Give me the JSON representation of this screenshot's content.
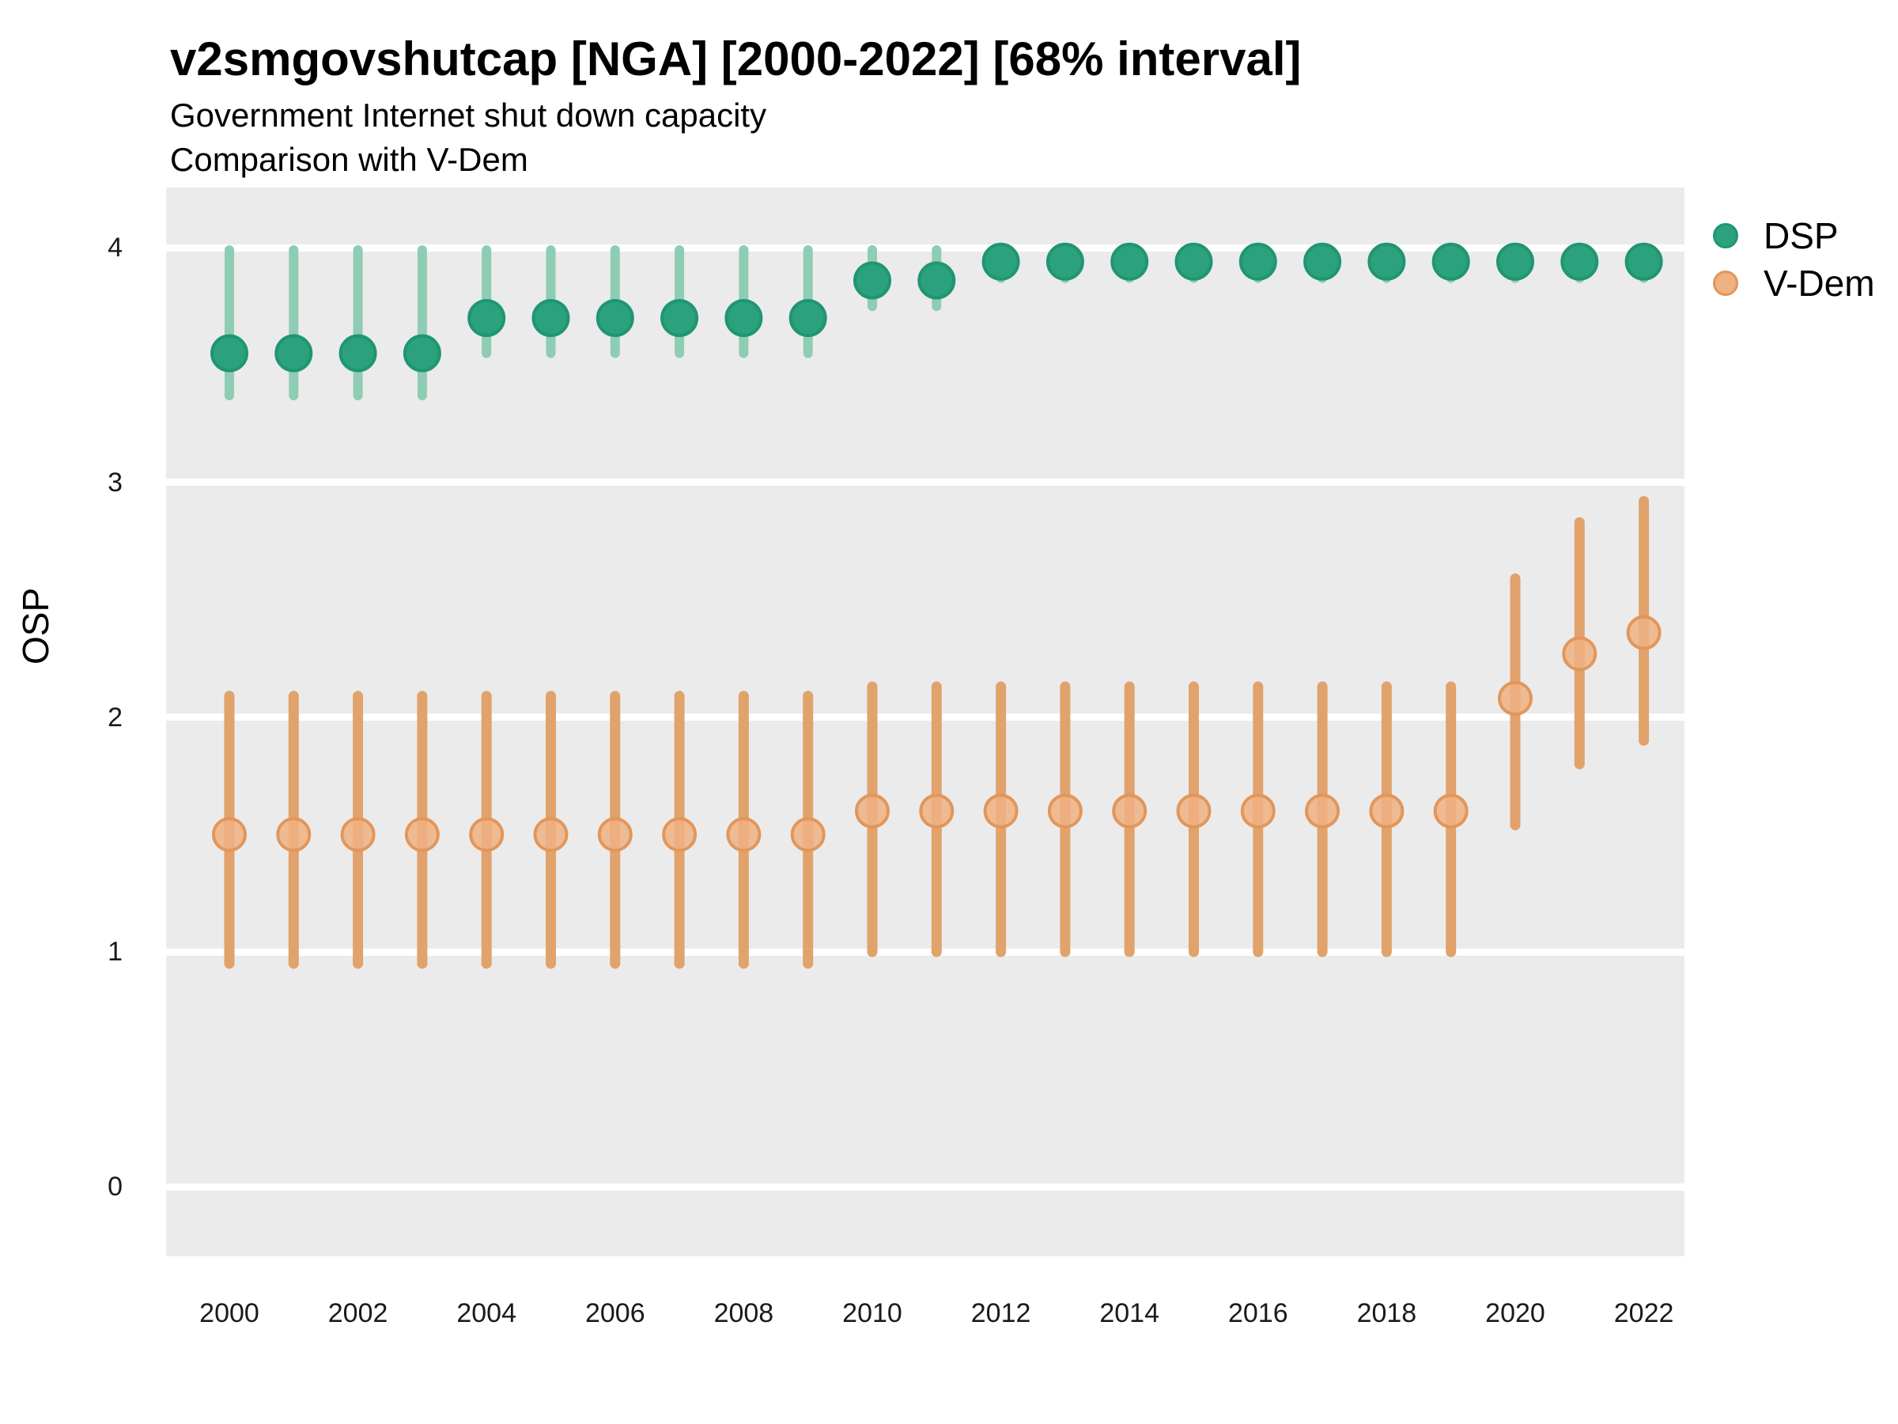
{
  "title": "v2smgovshutcap [NGA] [2000-2022] [68% interval]",
  "subtitle1": "Government Internet shut down capacity",
  "subtitle2": "Comparison with V-Dem",
  "axes": {
    "y": {
      "label": "OSP",
      "ticks": [
        0,
        1,
        2,
        3,
        4
      ]
    },
    "x": {
      "ticks": [
        2000,
        2002,
        2004,
        2006,
        2008,
        2010,
        2012,
        2014,
        2016,
        2018,
        2020,
        2022
      ]
    }
  },
  "legend": {
    "items": [
      {
        "label": "DSP",
        "fill": "#2BA27D",
        "stroke": "#1F9671"
      },
      {
        "label": "V-Dem",
        "fill": "#EEB283",
        "stroke": "#E2965A"
      }
    ]
  },
  "colors": {
    "panel_background": "#EBEBEB",
    "gridline": "#FFFFFF",
    "dsp_point_fill": "#2BA27D",
    "dsp_point_stroke": "#1F9671",
    "dsp_interval": "#8FCCB4",
    "vdem_point_fill": "#EEB283",
    "vdem_point_stroke": "#E2965A",
    "vdem_interval": "#E1A26C"
  },
  "chart_data": {
    "type": "pointrange",
    "title": "v2smgovshutcap [NGA] [2000-2022] [68% interval]",
    "interval": "68%",
    "xlabel": "",
    "ylabel": "OSP",
    "ylim": [
      -0.3,
      4.26
    ],
    "yticks": [
      0,
      1,
      2,
      3,
      4
    ],
    "grid": "on",
    "legend_position": "right",
    "x": [
      2000,
      2001,
      2002,
      2003,
      2004,
      2005,
      2006,
      2007,
      2008,
      2009,
      2010,
      2011,
      2012,
      2013,
      2014,
      2015,
      2016,
      2017,
      2018,
      2019,
      2020,
      2021,
      2022
    ],
    "series": [
      {
        "name": "DSP",
        "points": [
          {
            "year": 2000,
            "est": 3.55,
            "lo": 3.37,
            "hi": 3.99
          },
          {
            "year": 2001,
            "est": 3.55,
            "lo": 3.37,
            "hi": 3.99
          },
          {
            "year": 2002,
            "est": 3.55,
            "lo": 3.37,
            "hi": 3.99
          },
          {
            "year": 2003,
            "est": 3.55,
            "lo": 3.37,
            "hi": 3.99
          },
          {
            "year": 2004,
            "est": 3.7,
            "lo": 3.55,
            "hi": 3.99
          },
          {
            "year": 2005,
            "est": 3.7,
            "lo": 3.55,
            "hi": 3.99
          },
          {
            "year": 2006,
            "est": 3.7,
            "lo": 3.55,
            "hi": 3.99
          },
          {
            "year": 2007,
            "est": 3.7,
            "lo": 3.55,
            "hi": 3.99
          },
          {
            "year": 2008,
            "est": 3.7,
            "lo": 3.55,
            "hi": 3.99
          },
          {
            "year": 2009,
            "est": 3.7,
            "lo": 3.55,
            "hi": 3.99
          },
          {
            "year": 2010,
            "est": 3.86,
            "lo": 3.75,
            "hi": 3.99
          },
          {
            "year": 2011,
            "est": 3.86,
            "lo": 3.75,
            "hi": 3.99
          },
          {
            "year": 2012,
            "est": 3.94,
            "lo": 3.87,
            "hi": 4.0
          },
          {
            "year": 2013,
            "est": 3.94,
            "lo": 3.87,
            "hi": 4.0
          },
          {
            "year": 2014,
            "est": 3.94,
            "lo": 3.87,
            "hi": 4.0
          },
          {
            "year": 2015,
            "est": 3.94,
            "lo": 3.87,
            "hi": 4.0
          },
          {
            "year": 2016,
            "est": 3.94,
            "lo": 3.87,
            "hi": 4.0
          },
          {
            "year": 2017,
            "est": 3.94,
            "lo": 3.87,
            "hi": 4.0
          },
          {
            "year": 2018,
            "est": 3.94,
            "lo": 3.87,
            "hi": 4.0
          },
          {
            "year": 2019,
            "est": 3.94,
            "lo": 3.87,
            "hi": 4.0
          },
          {
            "year": 2020,
            "est": 3.94,
            "lo": 3.87,
            "hi": 4.0
          },
          {
            "year": 2021,
            "est": 3.94,
            "lo": 3.87,
            "hi": 4.0
          },
          {
            "year": 2022,
            "est": 3.94,
            "lo": 3.87,
            "hi": 4.0
          }
        ]
      },
      {
        "name": "V-Dem",
        "points": [
          {
            "year": 2000,
            "est": 1.5,
            "lo": 0.95,
            "hi": 2.09
          },
          {
            "year": 2001,
            "est": 1.5,
            "lo": 0.95,
            "hi": 2.09
          },
          {
            "year": 2002,
            "est": 1.5,
            "lo": 0.95,
            "hi": 2.09
          },
          {
            "year": 2003,
            "est": 1.5,
            "lo": 0.95,
            "hi": 2.09
          },
          {
            "year": 2004,
            "est": 1.5,
            "lo": 0.95,
            "hi": 2.09
          },
          {
            "year": 2005,
            "est": 1.5,
            "lo": 0.95,
            "hi": 2.09
          },
          {
            "year": 2006,
            "est": 1.5,
            "lo": 0.95,
            "hi": 2.09
          },
          {
            "year": 2007,
            "est": 1.5,
            "lo": 0.95,
            "hi": 2.09
          },
          {
            "year": 2008,
            "est": 1.5,
            "lo": 0.95,
            "hi": 2.09
          },
          {
            "year": 2009,
            "est": 1.5,
            "lo": 0.95,
            "hi": 2.09
          },
          {
            "year": 2010,
            "est": 1.6,
            "lo": 1.0,
            "hi": 2.13
          },
          {
            "year": 2011,
            "est": 1.6,
            "lo": 1.0,
            "hi": 2.13
          },
          {
            "year": 2012,
            "est": 1.6,
            "lo": 1.0,
            "hi": 2.13
          },
          {
            "year": 2013,
            "est": 1.6,
            "lo": 1.0,
            "hi": 2.13
          },
          {
            "year": 2014,
            "est": 1.6,
            "lo": 1.0,
            "hi": 2.13
          },
          {
            "year": 2015,
            "est": 1.6,
            "lo": 1.0,
            "hi": 2.13
          },
          {
            "year": 2016,
            "est": 1.6,
            "lo": 1.0,
            "hi": 2.13
          },
          {
            "year": 2017,
            "est": 1.6,
            "lo": 1.0,
            "hi": 2.13
          },
          {
            "year": 2018,
            "est": 1.6,
            "lo": 1.0,
            "hi": 2.13
          },
          {
            "year": 2019,
            "est": 1.6,
            "lo": 1.0,
            "hi": 2.13
          },
          {
            "year": 2020,
            "est": 2.08,
            "lo": 1.54,
            "hi": 2.59
          },
          {
            "year": 2021,
            "est": 2.27,
            "lo": 1.8,
            "hi": 2.83
          },
          {
            "year": 2022,
            "est": 2.36,
            "lo": 1.9,
            "hi": 2.92
          }
        ]
      }
    ]
  }
}
